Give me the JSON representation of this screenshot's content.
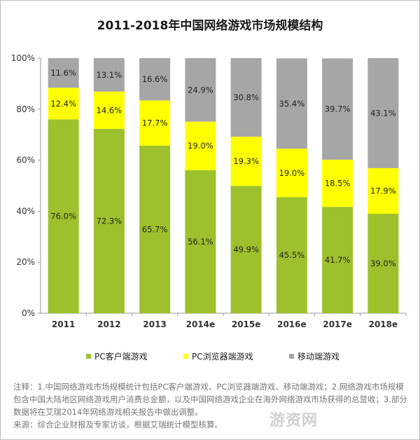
{
  "title": "2011-2018年中国网络游戏市场规模结构",
  "colors": {
    "pc_client": "#9dc12c",
    "pc_browser": "#ffff00",
    "mobile": "#a6a6a6",
    "axis": "#999999"
  },
  "chart_data": {
    "type": "bar",
    "stacked": true,
    "title": "2011-2018年中国网络游戏市场规模结构",
    "categories": [
      "2011",
      "2012",
      "2013",
      "2014e",
      "2015e",
      "2016e",
      "2017e",
      "2018e"
    ],
    "series": [
      {
        "name": "PC客户端游戏",
        "color": "#9dc12c",
        "values": [
          76.0,
          72.3,
          65.7,
          56.1,
          49.9,
          45.5,
          41.7,
          39.0
        ]
      },
      {
        "name": "PC浏览器端游戏",
        "color": "#ffff00",
        "values": [
          12.4,
          14.6,
          17.7,
          19.0,
          19.3,
          19.0,
          18.5,
          17.9
        ]
      },
      {
        "name": "移动端游戏",
        "color": "#a6a6a6",
        "values": [
          11.6,
          13.1,
          16.6,
          24.9,
          30.8,
          35.4,
          39.7,
          43.1
        ]
      }
    ],
    "ylim": [
      0,
      100
    ],
    "yticks": [
      "0%",
      "20%",
      "40%",
      "60%",
      "80%",
      "100%"
    ],
    "data_labels": [
      [
        "76.0%",
        "72.3%",
        "65.7%",
        "56.1%",
        "49.9%",
        "45.5%",
        "41.7%",
        "39.0%"
      ],
      [
        "12.4%",
        "14.6%",
        "17.7%",
        "19.0%",
        "19.3%",
        "19.0%",
        "18.5%",
        "17.9%"
      ],
      [
        "11.6%",
        "13.1%",
        "16.6%",
        "24.9%",
        "30.8%",
        "35.4%",
        "39.7%",
        "43.1%"
      ]
    ],
    "legend_position": "bottom",
    "grid": false
  },
  "legend": {
    "items": [
      "PC客户端游戏",
      "PC浏览器端游戏",
      "移动端游戏"
    ]
  },
  "notes": [
    "注释：1.中国网络游戏市场规模统计包括PC客户端游戏、PC浏览器端游戏、移动端游戏；2.网络游戏市场规模包含中国大陆地区网络游戏用户消费总金额，以及中国网络游戏企业在海外网络游戏市场获得的总营收；3.部分数据将在艾瑞2014年网络游戏相关报告中做出调整。",
    "来源：综合企业财报及专家访谈，根据艾瑞统计模型核算。"
  ],
  "watermark": "游资网"
}
